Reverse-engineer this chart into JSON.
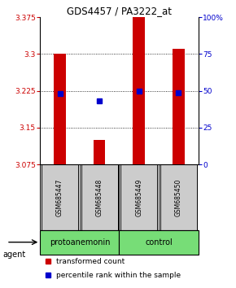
{
  "title": "GDS4457 / PA3222_at",
  "samples": [
    "GSM685447",
    "GSM685448",
    "GSM685449",
    "GSM685450"
  ],
  "bar_values": [
    3.3,
    3.125,
    3.375,
    3.31
  ],
  "percentile_values": [
    3.22,
    3.205,
    3.225,
    3.222
  ],
  "ymin": 3.075,
  "ymax": 3.375,
  "yticks": [
    3.075,
    3.15,
    3.225,
    3.3,
    3.375
  ],
  "ytick_labels": [
    "3.075",
    "3.15",
    "3.225",
    "3.3",
    "3.375"
  ],
  "right_yticks": [
    0,
    25,
    50,
    75,
    100
  ],
  "right_ytick_labels": [
    "0",
    "25",
    "50",
    "75",
    "100%"
  ],
  "gridlines": [
    3.15,
    3.225,
    3.3
  ],
  "group_defs": [
    {
      "start": 1,
      "end": 2,
      "label": "protoanemonin"
    },
    {
      "start": 3,
      "end": 4,
      "label": "control"
    }
  ],
  "group_color": "#77DD77",
  "bar_color": "#cc0000",
  "percentile_color": "#0000cc",
  "bar_width": 0.3,
  "axis_color_left": "#cc0000",
  "axis_color_right": "#0000cc",
  "sample_box_color": "#cccccc",
  "agent_label": "agent"
}
